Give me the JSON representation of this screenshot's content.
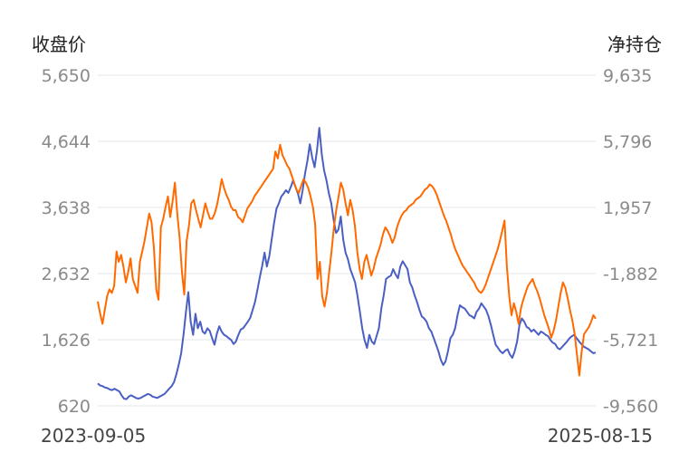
{
  "chart_data": {
    "type": "line",
    "title": "",
    "left_axis_label": "收盘价",
    "right_axis_label": "净持仓",
    "x_start_label": "2023-09-05",
    "x_end_label": "2025-08-15",
    "left_ticks": [
      "5,650",
      "4,644",
      "3,638",
      "2,632",
      "1,626",
      "620"
    ],
    "right_ticks": [
      "9,635",
      "5,796",
      "1,957",
      "-1,882",
      "-5,721",
      "-9,560"
    ],
    "ylim_left": [
      620,
      5650
    ],
    "ylim_right": [
      -9560,
      9635
    ],
    "grid": true,
    "series": [
      {
        "axis": "left",
        "color": "#4a5fc1",
        "values": [
          960,
          930,
          920,
          900,
          890,
          870,
          860,
          880,
          860,
          840,
          780,
          730,
          720,
          760,
          780,
          760,
          740,
          730,
          740,
          760,
          780,
          800,
          790,
          760,
          750,
          740,
          760,
          780,
          800,
          840,
          880,
          920,
          980,
          1100,
          1250,
          1420,
          1700,
          2050,
          2350,
          1900,
          1700,
          2020,
          1800,
          1900,
          1750,
          1720,
          1800,
          1760,
          1650,
          1550,
          1720,
          1830,
          1750,
          1700,
          1680,
          1650,
          1620,
          1560,
          1600,
          1700,
          1780,
          1800,
          1850,
          1900,
          1960,
          2080,
          2200,
          2380,
          2570,
          2750,
          2950,
          2740,
          2900,
          3150,
          3400,
          3620,
          3700,
          3800,
          3850,
          3900,
          3860,
          3950,
          4050,
          3950,
          3850,
          3700,
          3900,
          4150,
          4350,
          4600,
          4400,
          4250,
          4500,
          4850,
          4450,
          4200,
          4050,
          3850,
          3700,
          3450,
          3250,
          3300,
          3500,
          3150,
          2950,
          2850,
          2700,
          2600,
          2500,
          2300,
          2050,
          1800,
          1620,
          1500,
          1700,
          1600,
          1560,
          1680,
          1800,
          2100,
          2300,
          2550,
          2580,
          2600,
          2700,
          2620,
          2560,
          2740,
          2820,
          2760,
          2700,
          2500,
          2420,
          2300,
          2200,
          2080,
          1980,
          1950,
          1900,
          1800,
          1750,
          1650,
          1550,
          1450,
          1320,
          1240,
          1300,
          1450,
          1650,
          1700,
          1800,
          2000,
          2150,
          2120,
          2100,
          2050,
          2000,
          1980,
          1950,
          2050,
          2100,
          2180,
          2130,
          2080,
          1980,
          1850,
          1700,
          1550,
          1500,
          1450,
          1420,
          1460,
          1480,
          1400,
          1350,
          1450,
          1600,
          1850,
          1950,
          1900,
          1820,
          1800,
          1750,
          1780,
          1740,
          1700,
          1750,
          1730,
          1700,
          1680,
          1620,
          1580,
          1560,
          1500,
          1480,
          1520,
          1560,
          1600,
          1650,
          1680,
          1700,
          1650,
          1600,
          1560,
          1520,
          1500,
          1480,
          1450,
          1420,
          1430
        ]
      },
      {
        "axis": "right",
        "color": "#ff6a00",
        "values": [
          -3500,
          -4200,
          -4800,
          -4000,
          -3200,
          -2800,
          -3000,
          -2600,
          -600,
          -1200,
          -800,
          -1500,
          -2400,
          -1800,
          -1000,
          -2200,
          -2600,
          -3000,
          -1200,
          -600,
          0,
          800,
          1600,
          1100,
          -400,
          -2800,
          -3400,
          800,
          1300,
          2000,
          2600,
          1400,
          2300,
          3400,
          1600,
          200,
          -1800,
          -3100,
          0,
          900,
          2200,
          2400,
          1800,
          1300,
          800,
          1500,
          2200,
          1700,
          1300,
          1300,
          1600,
          2100,
          2800,
          3600,
          3100,
          2700,
          2400,
          2000,
          1800,
          1800,
          1400,
          1300,
          1100,
          1500,
          1900,
          2100,
          2300,
          2600,
          2800,
          3000,
          3200,
          3400,
          3600,
          3800,
          4000,
          4200,
          5200,
          4800,
          5600,
          5000,
          4700,
          4400,
          4200,
          3800,
          3400,
          3000,
          2800,
          3200,
          3600,
          3400,
          3100,
          2600,
          2000,
          1000,
          -2200,
          -1200,
          -3200,
          -3800,
          -3000,
          -1800,
          -600,
          800,
          1800,
          2600,
          3400,
          3000,
          2200,
          1500,
          2400,
          1800,
          900,
          -600,
          -1600,
          -2200,
          -1200,
          -800,
          -1400,
          -2000,
          -1600,
          -1000,
          -600,
          -200,
          400,
          800,
          600,
          300,
          -100,
          200,
          800,
          1200,
          1500,
          1700,
          1800,
          2000,
          2100,
          2200,
          2400,
          2500,
          2600,
          2800,
          3000,
          3100,
          3300,
          3200,
          3000,
          2700,
          2300,
          1900,
          1500,
          1200,
          800,
          400,
          -100,
          -500,
          -800,
          -1100,
          -1400,
          -1600,
          -1800,
          -2000,
          -2200,
          -2400,
          -2700,
          -2900,
          -3000,
          -2800,
          -2500,
          -2100,
          -1700,
          -1300,
          -900,
          -500,
          0,
          600,
          1200,
          -1500,
          -3200,
          -4300,
          -3600,
          -4100,
          -4800,
          -3900,
          -3400,
          -3000,
          -2600,
          -2400,
          -2200,
          -2600,
          -2900,
          -3300,
          -3800,
          -4300,
          -4700,
          -5100,
          -5600,
          -5200,
          -4600,
          -3800,
          -3000,
          -2400,
          -2700,
          -3300,
          -4000,
          -4600,
          -5400,
          -6600,
          -7800,
          -6400,
          -5400,
          -5200,
          -5000,
          -4700,
          -4300,
          -4500
        ]
      }
    ]
  }
}
